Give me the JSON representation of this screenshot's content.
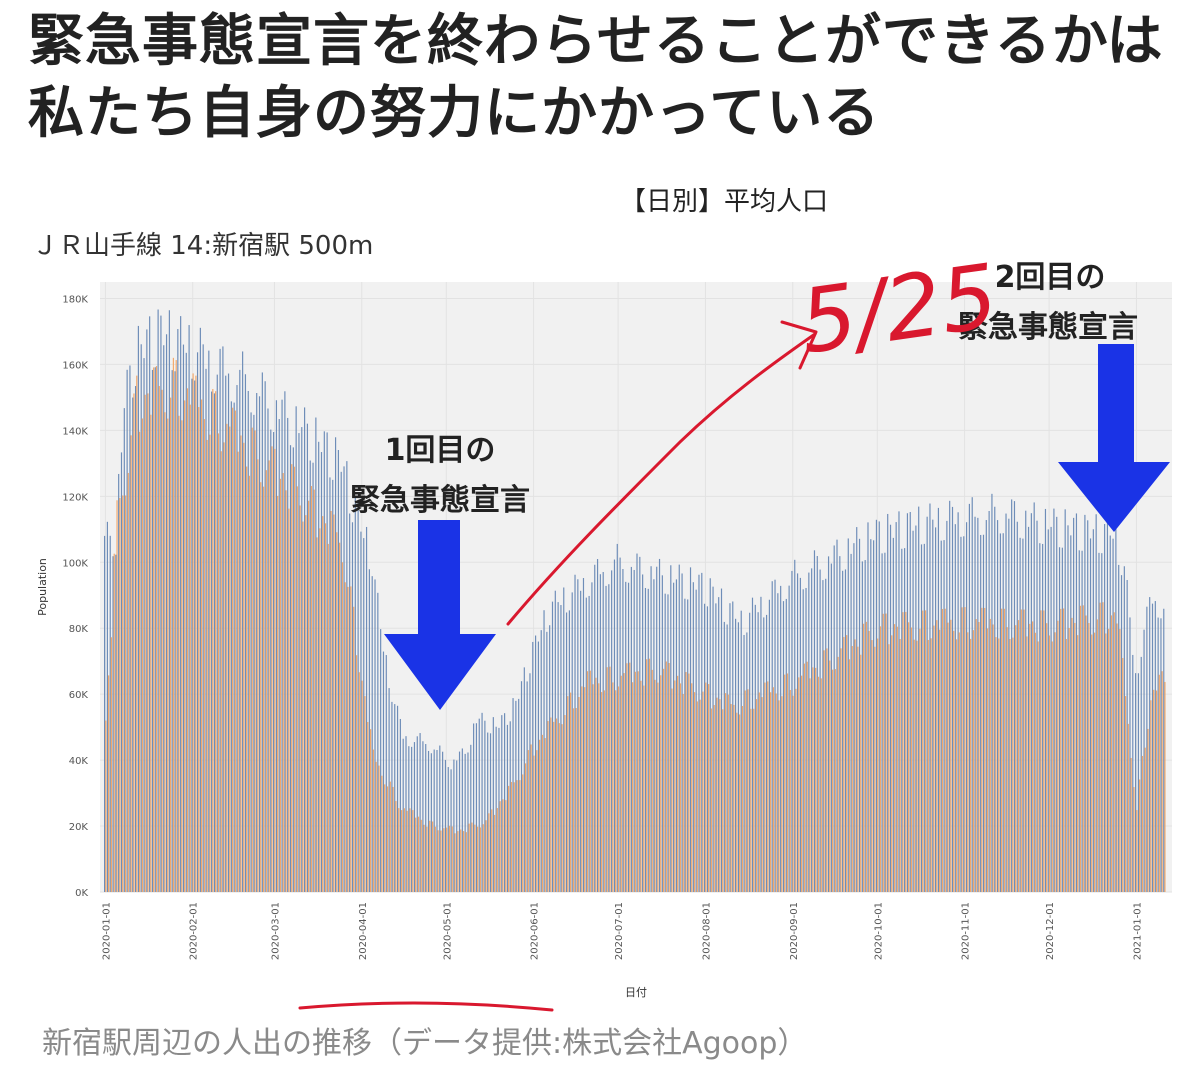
{
  "headline": {
    "line1": "緊急事態宣言を終わらせることができるかは",
    "line2": "私たち自身の努力にかかっている"
  },
  "caption": "新宿駅周辺の人出の推移（データ提供:株式会社Agoop）",
  "colors": {
    "blue_series": "#6e8db8",
    "orange_series": "#f2a86b",
    "plot_bg": "#f1f1f1",
    "arrow": "#1a33e6",
    "handwriting": "#d9182e"
  },
  "annotations": {
    "first_declaration": [
      "1回目の",
      "緊急事態宣言"
    ],
    "second_declaration": [
      "2回目の",
      "緊急事態宣言"
    ],
    "handwritten_date": "5/25"
  },
  "chart_data": {
    "type": "bar",
    "title": "【日別】平均人口",
    "subtitle": "ＪＲ山手線 14:新宿駅 500m",
    "xlabel": "日付",
    "ylabel": "Population",
    "ylim": [
      0,
      185000
    ],
    "yticks": [
      "0K",
      "20K",
      "40K",
      "60K",
      "80K",
      "100K",
      "120K",
      "140K",
      "160K",
      "180K"
    ],
    "xticks": [
      "2020-01-01",
      "2020-02-01",
      "2020-03-01",
      "2020-04-01",
      "2020-05-01",
      "2020-06-01",
      "2020-07-01",
      "2020-08-01",
      "2020-09-01",
      "2020-10-01",
      "2020-11-01",
      "2020-12-01",
      "2021-01-01"
    ],
    "x_range": [
      "2020-01-01",
      "2021-01-11"
    ],
    "grid": true,
    "legend": "none",
    "series_styles": [
      {
        "color": "#6e8db8"
      },
      {
        "color": "#f2a86b"
      }
    ],
    "profile_blue": [
      [
        "2020-01-01",
        108000
      ],
      [
        "2020-01-05",
        110000
      ],
      [
        "2020-01-08",
        150000
      ],
      [
        "2020-01-12",
        165000
      ],
      [
        "2020-01-20",
        172000
      ],
      [
        "2020-01-31",
        168000
      ],
      [
        "2020-02-10",
        162000
      ],
      [
        "2020-02-20",
        158000
      ],
      [
        "2020-03-01",
        150000
      ],
      [
        "2020-03-15",
        140000
      ],
      [
        "2020-03-25",
        132000
      ],
      [
        "2020-04-01",
        112000
      ],
      [
        "2020-04-05",
        103000
      ],
      [
        "2020-04-08",
        80000
      ],
      [
        "2020-04-12",
        62000
      ],
      [
        "2020-04-16",
        48000
      ],
      [
        "2020-04-25",
        46000
      ],
      [
        "2020-05-03",
        40000
      ],
      [
        "2020-05-08",
        43000
      ],
      [
        "2020-05-12",
        53000
      ],
      [
        "2020-05-20",
        51000
      ],
      [
        "2020-05-26",
        58000
      ],
      [
        "2020-06-01",
        74000
      ],
      [
        "2020-06-07",
        87000
      ],
      [
        "2020-06-20",
        96000
      ],
      [
        "2020-07-01",
        102000
      ],
      [
        "2020-07-15",
        98000
      ],
      [
        "2020-08-01",
        94000
      ],
      [
        "2020-08-14",
        83000
      ],
      [
        "2020-08-25",
        92000
      ],
      [
        "2020-09-01",
        97000
      ],
      [
        "2020-09-15",
        103000
      ],
      [
        "2020-10-01",
        110000
      ],
      [
        "2020-10-15",
        113000
      ],
      [
        "2020-11-01",
        116000
      ],
      [
        "2020-11-15",
        117000
      ],
      [
        "2020-12-01",
        113000
      ],
      [
        "2020-12-15",
        111000
      ],
      [
        "2020-12-25",
        110000
      ],
      [
        "2020-12-28",
        100000
      ],
      [
        "2021-01-01",
        66000
      ],
      [
        "2021-01-04",
        82000
      ],
      [
        "2021-01-07",
        90000
      ],
      [
        "2021-01-11",
        89000
      ]
    ],
    "profile_orange": [
      [
        "2020-01-01",
        50000
      ],
      [
        "2020-01-05",
        110000
      ],
      [
        "2020-01-12",
        145000
      ],
      [
        "2020-01-25",
        150000
      ],
      [
        "2020-02-10",
        140000
      ],
      [
        "2020-02-25",
        128000
      ],
      [
        "2020-03-10",
        118000
      ],
      [
        "2020-03-25",
        103000
      ],
      [
        "2020-04-05",
        40000
      ],
      [
        "2020-04-15",
        25000
      ],
      [
        "2020-04-25",
        20000
      ],
      [
        "2020-05-05",
        18000
      ],
      [
        "2020-05-15",
        21000
      ],
      [
        "2020-05-25",
        32000
      ],
      [
        "2020-06-01",
        43000
      ],
      [
        "2020-06-20",
        62000
      ],
      [
        "2020-07-15",
        66000
      ],
      [
        "2020-08-10",
        55000
      ],
      [
        "2020-09-01",
        62000
      ],
      [
        "2020-10-01",
        78000
      ],
      [
        "2020-11-01",
        80000
      ],
      [
        "2020-12-01",
        79000
      ],
      [
        "2020-12-25",
        82000
      ],
      [
        "2021-01-01",
        25000
      ],
      [
        "2021-01-06",
        58000
      ],
      [
        "2021-01-11",
        63000
      ]
    ]
  }
}
